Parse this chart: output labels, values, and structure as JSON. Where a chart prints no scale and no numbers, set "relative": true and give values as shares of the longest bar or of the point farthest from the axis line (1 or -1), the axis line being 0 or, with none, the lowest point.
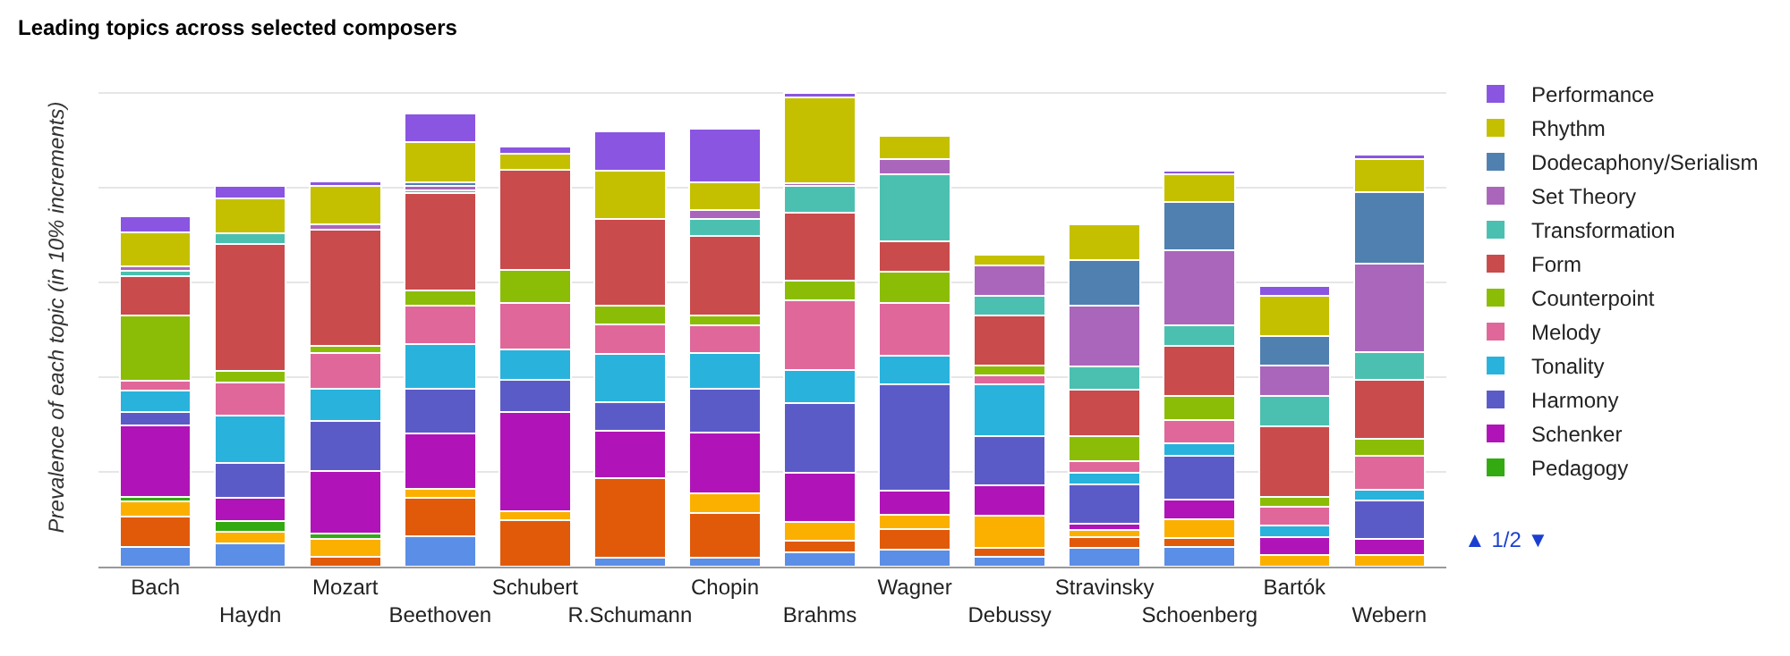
{
  "chart_data": {
    "type": "bar",
    "title": "Leading topics across selected composers",
    "ylabel": "Prevalence of each topic (in 10% increments)",
    "categories": [
      "Bach",
      "Haydn",
      "Mozart",
      "Beethoven",
      "Schubert",
      "R.Schumann",
      "Chopin",
      "Brahms",
      "Wagner",
      "Debussy",
      "Stravinsky",
      "Schoenberg",
      "Bartók",
      "Webern"
    ],
    "stacked": true,
    "relative": true,
    "grid": "y",
    "legend": "right",
    "annotations": [
      "▲ 1/2 ▼"
    ],
    "series": [
      {
        "color": "#5b8ee6",
        "values": [
          0.041,
          0.05,
          0,
          0.064,
          0,
          0.019,
          0.019,
          0.031,
          0.035,
          0.021,
          0.039,
          0.041,
          0,
          0
        ]
      },
      {
        "color": "#e05a0a",
        "values": [
          0.065,
          0,
          0.021,
          0.082,
          0.098,
          0.167,
          0.094,
          0.023,
          0.044,
          0.018,
          0.024,
          0.019,
          0,
          0
        ]
      },
      {
        "color": "#fbb000",
        "values": [
          0.031,
          0.023,
          0.038,
          0.019,
          0.019,
          0,
          0.041,
          0.04,
          0.031,
          0.069,
          0.014,
          0.04,
          0.025,
          0.025
        ]
      },
      {
        "name": "Pedagogy",
        "color": "#33aa11",
        "values": [
          0.01,
          0.023,
          0.01,
          0,
          0,
          0,
          0,
          0,
          0,
          0,
          0,
          0,
          0,
          0
        ]
      },
      {
        "name": "Schenker",
        "color": "#b014b8",
        "values": [
          0.151,
          0.05,
          0.133,
          0.116,
          0.21,
          0.101,
          0.129,
          0.104,
          0.05,
          0.064,
          0.013,
          0.041,
          0.038,
          0.033
        ]
      },
      {
        "name": "Harmony",
        "color": "#5b5bc8",
        "values": [
          0.029,
          0.072,
          0.106,
          0.094,
          0.067,
          0.06,
          0.093,
          0.147,
          0.224,
          0.104,
          0.084,
          0.092,
          0,
          0.081
        ]
      },
      {
        "name": "Tonality",
        "color": "#29b2dc",
        "values": [
          0.045,
          0.101,
          0.067,
          0.094,
          0.065,
          0.102,
          0.075,
          0.07,
          0.062,
          0.108,
          0.024,
          0.028,
          0.023,
          0.023
        ]
      },
      {
        "name": "Melody",
        "color": "#e0679a",
        "values": [
          0.02,
          0.069,
          0.075,
          0.082,
          0.098,
          0.062,
          0.058,
          0.147,
          0.111,
          0.019,
          0.025,
          0.049,
          0.041,
          0.072
        ]
      },
      {
        "name": "Counterpoint",
        "color": "#8bbd06",
        "values": [
          0.138,
          0.025,
          0.016,
          0.031,
          0.069,
          0.04,
          0.021,
          0.041,
          0.065,
          0.021,
          0.052,
          0.05,
          0.021,
          0.035
        ]
      },
      {
        "name": "Form",
        "color": "#c94b4b",
        "values": [
          0.084,
          0.268,
          0.246,
          0.207,
          0.211,
          0.182,
          0.168,
          0.144,
          0.064,
          0.107,
          0.099,
          0.106,
          0.149,
          0.126
        ]
      },
      {
        "name": "Transformation",
        "color": "#4bc0b0",
        "values": [
          0.01,
          0.023,
          0,
          0.006,
          0,
          0,
          0.036,
          0.057,
          0.143,
          0.04,
          0.048,
          0.043,
          0.063,
          0.057
        ]
      },
      {
        "name": "Set Theory",
        "color": "#aa66bb",
        "values": [
          0.009,
          0,
          0.01,
          0.008,
          0,
          0,
          0.019,
          0.006,
          0.031,
          0.065,
          0.129,
          0.158,
          0.064,
          0.188
        ]
      },
      {
        "name": "Dodecaphony/Serialism",
        "color": "#4f80b0",
        "values": [
          null,
          0,
          0,
          0.008,
          0,
          0,
          0,
          0,
          0,
          0,
          0.097,
          0.103,
          0.063,
          0.151
        ]
      },
      {
        "name": "Rhythm",
        "color": "#c4c000",
        "values": [
          0.072,
          0.074,
          0.082,
          0.085,
          0.034,
          0.103,
          0.059,
          0.18,
          0.05,
          0.023,
          0.075,
          0.059,
          0.085,
          0.069
        ]
      },
      {
        "name": "Performance",
        "color": "#8a55e0",
        "values": [
          0.034,
          0.025,
          0.01,
          0.06,
          0.015,
          0.082,
          0.113,
          0.01,
          0,
          0,
          0,
          0.006,
          0.021,
          0.009
        ]
      }
    ]
  }
}
